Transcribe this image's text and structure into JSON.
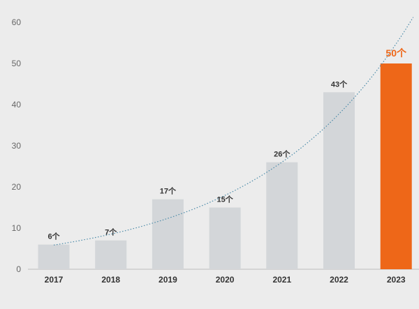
{
  "chart_data": {
    "type": "bar",
    "categories": [
      "2017",
      "2018",
      "2019",
      "2020",
      "2021",
      "2022",
      "2023"
    ],
    "values": [
      6,
      7,
      17,
      15,
      26,
      43,
      50
    ],
    "data_labels": [
      "6个",
      "7个",
      "17个",
      "15个",
      "26个",
      "43个",
      "50个"
    ],
    "highlight_index": 6,
    "ylim": [
      0,
      60
    ],
    "yticks": [
      "0",
      "10",
      "20",
      "30",
      "40",
      "50",
      "60"
    ],
    "trendline": {
      "type": "exponential",
      "style": "dotted"
    },
    "grid": false,
    "legend": "none"
  },
  "colors": {
    "background": "#ececec",
    "bar": "#d3d6d9",
    "highlight": "#ee6718",
    "trend": "#4a8aa8",
    "axis": "#bdbdbd"
  }
}
